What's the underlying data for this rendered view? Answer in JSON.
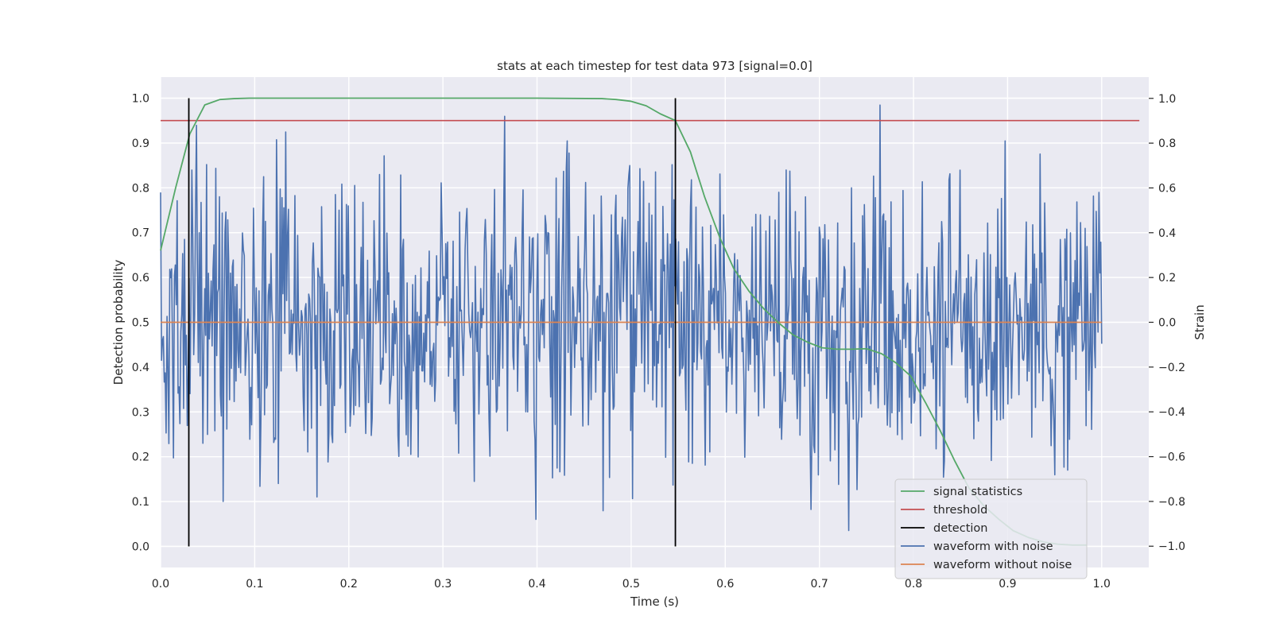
{
  "chart_data": {
    "type": "line",
    "title": "stats at each timestep for test data 973 [signal=0.0]",
    "xlabel": "Time (s)",
    "ylabel": "Detection probability",
    "y2label": "Strain",
    "xlim": [
      0.0,
      1.05
    ],
    "ylim": [
      -0.047,
      1.047
    ],
    "y2lim": [
      -1.095,
      1.095
    ],
    "xticks": [
      "0.0",
      "0.1",
      "0.2",
      "0.3",
      "0.4",
      "0.5",
      "0.6",
      "0.7",
      "0.8",
      "0.9",
      "1.0"
    ],
    "yticks": [
      "0.0",
      "0.1",
      "0.2",
      "0.3",
      "0.4",
      "0.5",
      "0.6",
      "0.7",
      "0.8",
      "0.9",
      "1.0"
    ],
    "y2ticks": [
      "−1.0",
      "−0.8",
      "−0.6",
      "−0.4",
      "−0.2",
      "0.0",
      "0.2",
      "0.4",
      "0.6",
      "0.8",
      "1.0"
    ],
    "grid": true,
    "legend_position": "lower-right",
    "colors": {
      "background": "#eaeaf2",
      "grid": "#ffffff",
      "signal_statistics": "#55a868",
      "threshold": "#c44e52",
      "detection": "#000000",
      "waveform_with_noise": "#4c72b0",
      "waveform_without_noise": "#dd8452"
    },
    "series": [
      {
        "name": "signal statistics",
        "axis": "left",
        "x": [
          0.0,
          0.016,
          0.031,
          0.047,
          0.063,
          0.078,
          0.094,
          0.2,
          0.3,
          0.4,
          0.469,
          0.484,
          0.5,
          0.516,
          0.531,
          0.547,
          0.563,
          0.578,
          0.594,
          0.609,
          0.625,
          0.641,
          0.656,
          0.672,
          0.688,
          0.703,
          0.719,
          0.734,
          0.75,
          0.766,
          0.781,
          0.797,
          0.813,
          0.828,
          0.844,
          0.859,
          0.875,
          0.891,
          0.906,
          0.922,
          0.938,
          0.953,
          0.969,
          0.984
        ],
        "y": [
          0.66,
          0.8,
          0.92,
          0.985,
          0.997,
          0.999,
          1.0,
          1.0,
          1.0,
          1.0,
          0.999,
          0.997,
          0.993,
          0.983,
          0.965,
          0.95,
          0.88,
          0.78,
          0.69,
          0.62,
          0.57,
          0.53,
          0.5,
          0.472,
          0.455,
          0.443,
          0.44,
          0.44,
          0.441,
          0.43,
          0.41,
          0.38,
          0.32,
          0.26,
          0.19,
          0.13,
          0.09,
          0.06,
          0.035,
          0.02,
          0.01,
          0.005,
          0.003,
          0.003
        ]
      },
      {
        "name": "threshold",
        "axis": "left",
        "x": [
          0.0,
          1.04
        ],
        "y": [
          0.95,
          0.95
        ]
      },
      {
        "name": "detection",
        "axis": "left",
        "x": [
          0.03,
          0.547
        ],
        "y_range": [
          0.0,
          1.0
        ]
      },
      {
        "name": "waveform with noise",
        "axis": "right",
        "x_range": [
          0.0,
          1.0
        ],
        "n_points": 1024,
        "y_range": [
          -1.0,
          1.0
        ],
        "y_sample": [
          0.58,
          0.68,
          -0.8,
          0.15,
          0.85,
          -0.78,
          0.52,
          0.66,
          -0.59,
          0.4,
          -0.34,
          0.92,
          -0.88,
          0.81,
          -0.17,
          0.7,
          0.28,
          -0.63,
          0.48,
          -0.31,
          0.68,
          0.13,
          -0.93,
          0.97,
          -0.45,
          0.36,
          -0.52,
          0.81,
          0.24,
          -0.66
        ]
      },
      {
        "name": "waveform without noise",
        "axis": "right",
        "x": [
          0.0,
          1.0
        ],
        "y": [
          0.0,
          0.0
        ]
      }
    ]
  }
}
